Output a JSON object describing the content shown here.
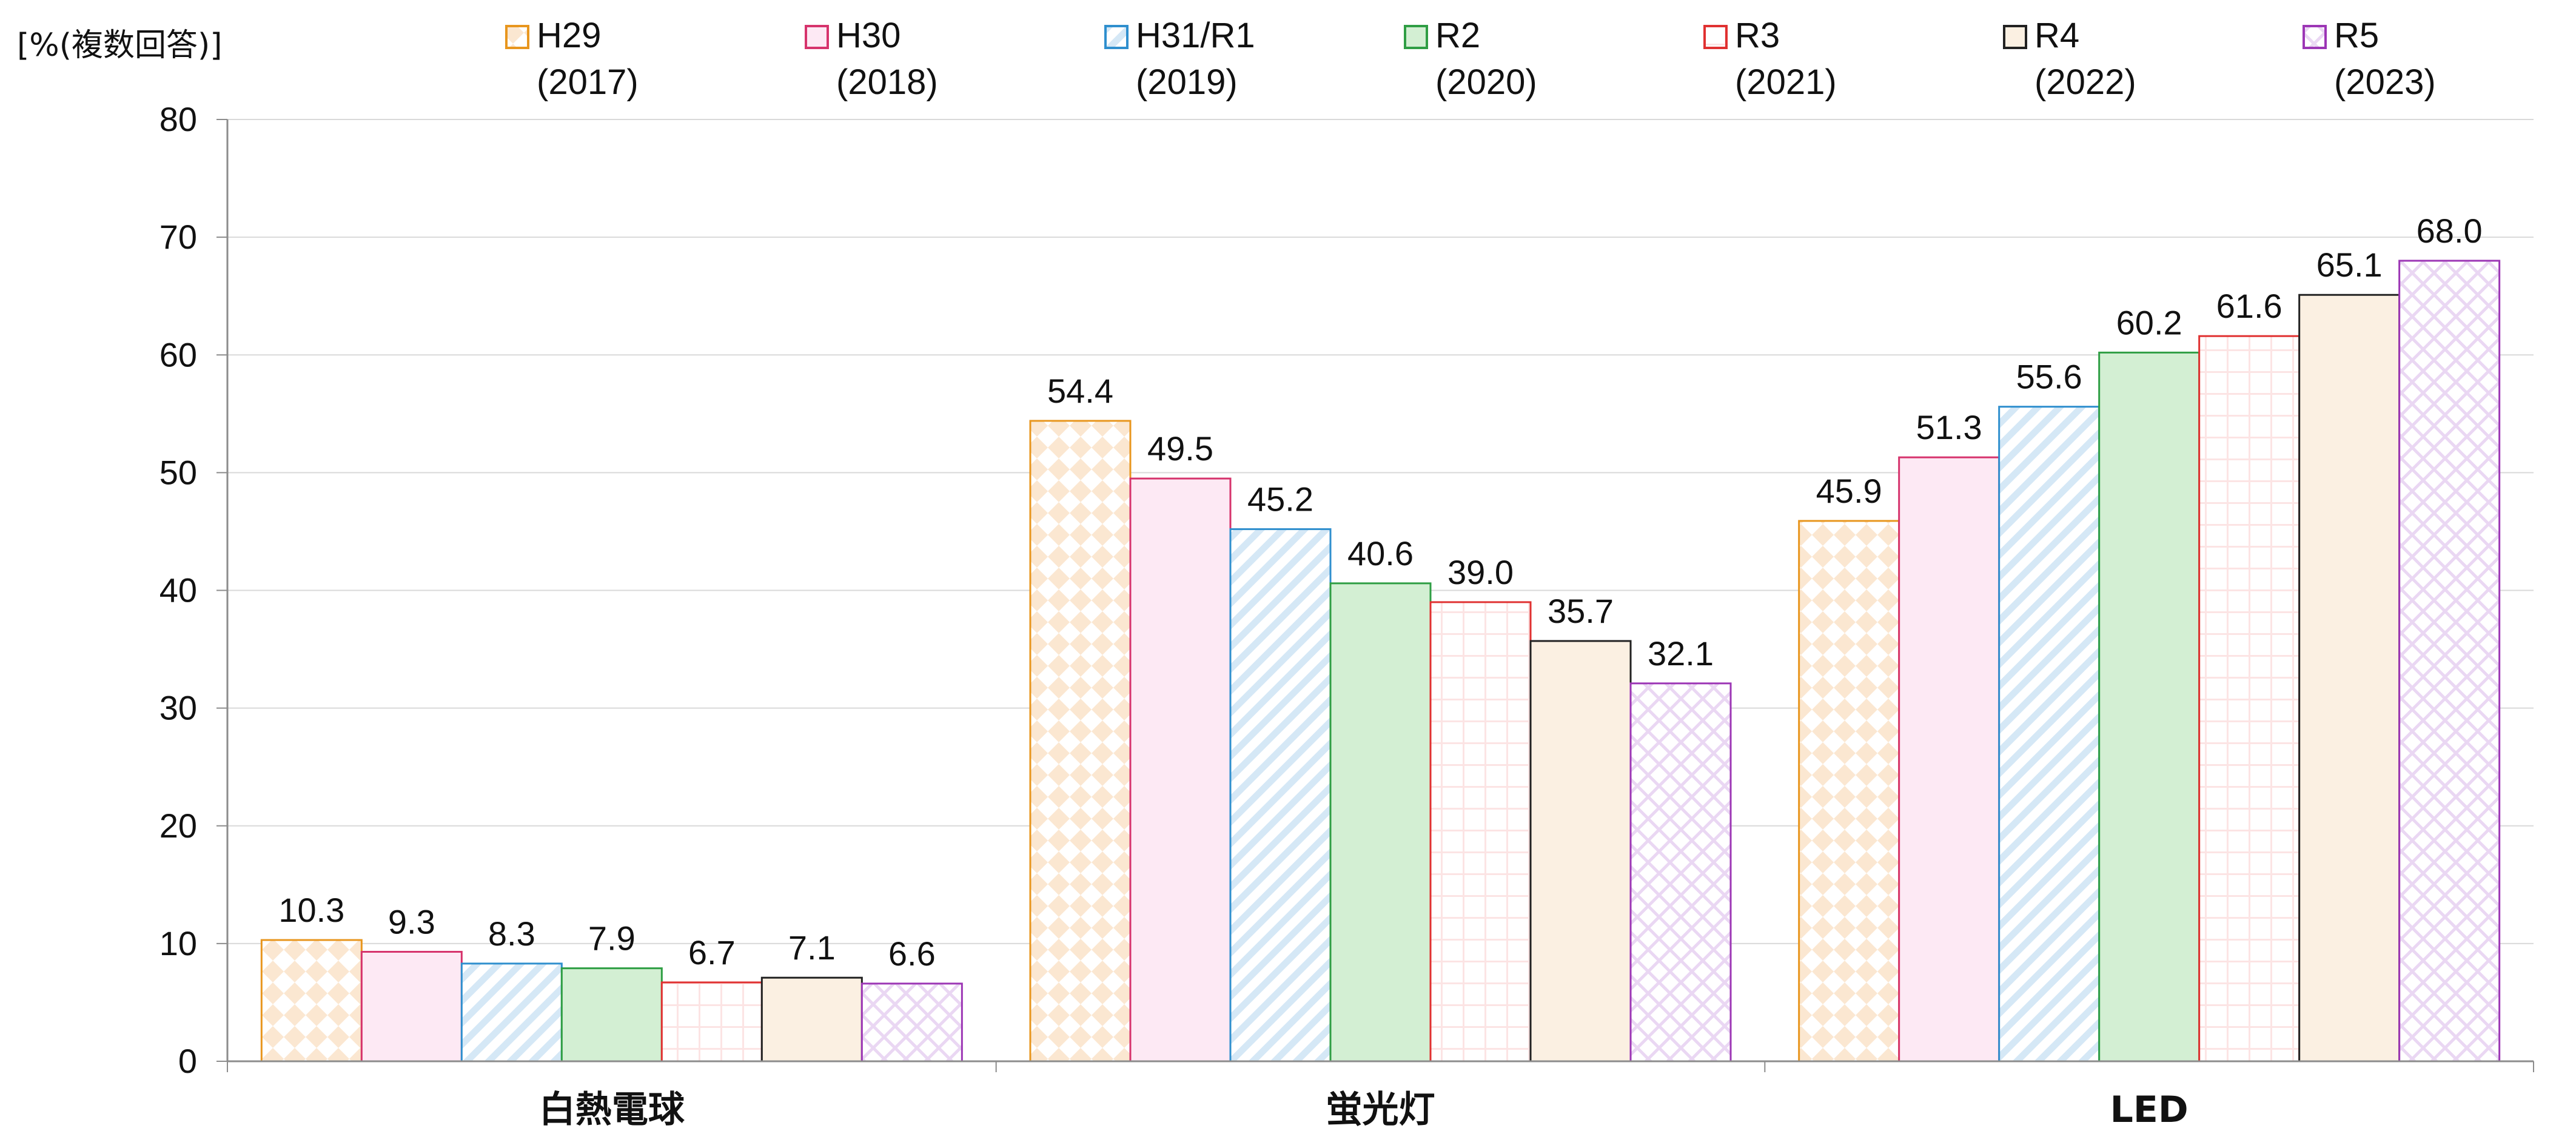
{
  "unit_label": "[%(複数回答)]",
  "chart_data": {
    "type": "bar",
    "ylim": [
      0,
      80
    ],
    "yticks": [
      0,
      10,
      20,
      30,
      40,
      50,
      60,
      70,
      80
    ],
    "categories": [
      "白熱電球",
      "蛍光灯",
      "LED"
    ],
    "legend_position": "top",
    "grid": true,
    "series": [
      {
        "name": "H29",
        "name_sub": "(2017)",
        "color": "#e8961e",
        "fill": "#fbe7d1",
        "pattern": "diamond",
        "values": [
          10.3,
          54.4,
          45.9
        ],
        "labels": [
          "10.3",
          "54.4",
          "45.9"
        ]
      },
      {
        "name": "H30",
        "name_sub": "(2018)",
        "color": "#d6336c",
        "fill": "#fde9f4",
        "pattern": "none",
        "values": [
          9.3,
          49.5,
          51.3
        ],
        "labels": [
          "9.3",
          "49.5",
          "51.3"
        ]
      },
      {
        "name": "H31/R1",
        "name_sub": "(2019)",
        "color": "#2f8fce",
        "fill": "#d5e8f6",
        "pattern": "diag",
        "values": [
          8.3,
          45.2,
          55.6
        ],
        "labels": [
          "8.3",
          "45.2",
          "55.6"
        ]
      },
      {
        "name": "R2",
        "name_sub": "(2020)",
        "color": "#2f9e44",
        "fill": "#d3efd3",
        "pattern": "none",
        "values": [
          7.9,
          40.6,
          60.2
        ],
        "labels": [
          "7.9",
          "40.6",
          "60.2"
        ]
      },
      {
        "name": "R3",
        "name_sub": "(2021)",
        "color": "#e03131",
        "fill": "#fce4e4",
        "pattern": "grid",
        "values": [
          6.7,
          39.0,
          61.6
        ],
        "labels": [
          "6.7",
          "39.0",
          "61.6"
        ]
      },
      {
        "name": "R4",
        "name_sub": "(2022)",
        "color": "#222222",
        "fill": "#fbf0e2",
        "pattern": "none",
        "values": [
          7.1,
          35.7,
          65.1
        ],
        "labels": [
          "7.1",
          "35.7",
          "65.1"
        ]
      },
      {
        "name": "R5",
        "name_sub": "(2023)",
        "color": "#9c36b5",
        "fill": "#ead7f3",
        "pattern": "check",
        "values": [
          6.6,
          32.1,
          68.0
        ],
        "labels": [
          "6.6",
          "32.1",
          "68.0"
        ]
      }
    ]
  }
}
